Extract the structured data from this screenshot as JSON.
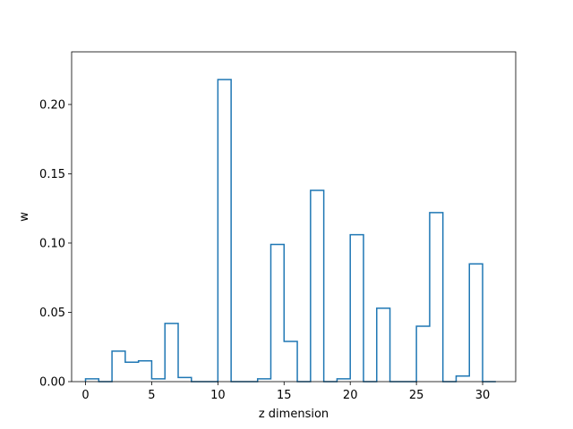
{
  "chart_data": {
    "type": "bar",
    "style": "step",
    "xlabel": "z dimension",
    "ylabel": "w",
    "xlim": [
      -1.05,
      32.5
    ],
    "ylim": [
      0,
      0.238
    ],
    "xticks": [
      0,
      5,
      10,
      15,
      20,
      25,
      30
    ],
    "yticks": [
      0.0,
      0.05,
      0.1,
      0.15,
      0.2
    ],
    "xtick_labels": [
      "0",
      "5",
      "10",
      "15",
      "20",
      "25",
      "30"
    ],
    "ytick_labels": [
      "0.00",
      "0.05",
      "0.10",
      "0.15",
      "0.20"
    ],
    "grid": false,
    "color": "#1f77b4",
    "x": [
      0,
      1,
      2,
      3,
      4,
      5,
      6,
      7,
      8,
      9,
      10,
      11,
      12,
      13,
      14,
      15,
      16,
      17,
      18,
      19,
      20,
      21,
      22,
      23,
      24,
      25,
      26,
      27,
      28,
      29,
      30
    ],
    "values": [
      0.002,
      0.0,
      0.022,
      0.014,
      0.015,
      0.002,
      0.042,
      0.003,
      0.0,
      0.0,
      0.218,
      0.0,
      0.0,
      0.002,
      0.099,
      0.029,
      0.0,
      0.138,
      0.0,
      0.002,
      0.106,
      0.0,
      0.053,
      0.0,
      0.0,
      0.04,
      0.122,
      0.0,
      0.004,
      0.085,
      0.0
    ]
  }
}
